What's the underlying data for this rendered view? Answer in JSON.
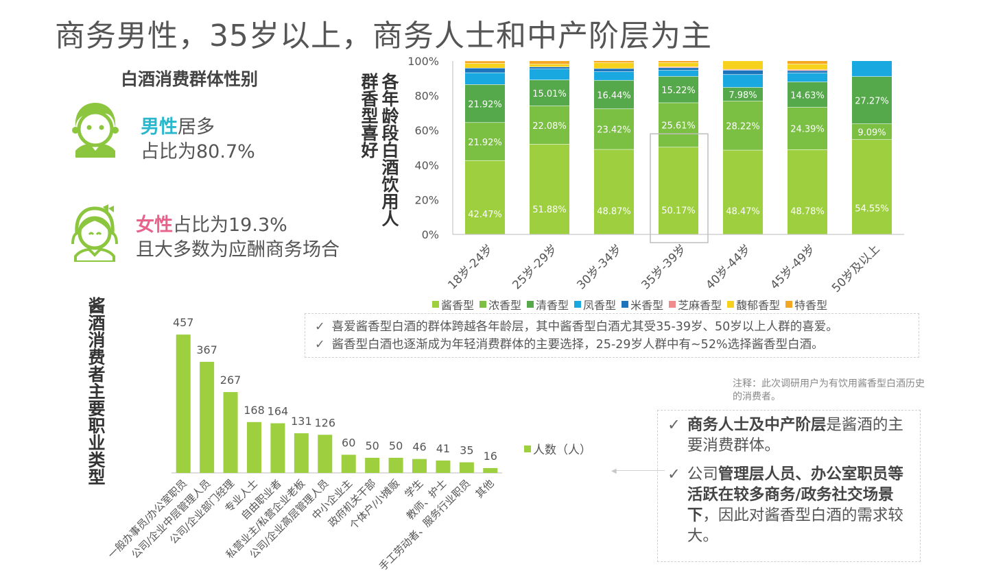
{
  "page": {
    "title": "商务男性，35岁以上，商务人士和中产阶层为主"
  },
  "gender": {
    "title": "白酒消费群体性别",
    "male": {
      "highlight": "男性",
      "rest": "居多",
      "line2": "占比为80.7%"
    },
    "female": {
      "highlight": "女性",
      "rest": "占比为19.3%",
      "line2": "且大多数为应酬商务场合"
    }
  },
  "colors": {
    "jiang": "#9dcf3f",
    "nong": "#7bc043",
    "qing": "#56a94a",
    "feng": "#19a9e0",
    "mi": "#1c75bc",
    "zhima": "#ef8b8b",
    "fuyu": "#f7d21c",
    "te": "#f5a623"
  },
  "chart_titles": {
    "age_chart": "各年龄段白酒饮用人群香型喜好",
    "occupation_chart": "酱酒消费者主要职业类型"
  },
  "chart_data": [
    {
      "type": "bar",
      "stacked": true,
      "categories": [
        "18岁-24岁",
        "25岁-29岁",
        "30岁-34岁",
        "35岁-39岁",
        "40岁-44岁",
        "45岁-49岁",
        "50岁及以上"
      ],
      "ylim": [
        0,
        100
      ],
      "yticks": [
        "0%",
        "20%",
        "40%",
        "60%",
        "80%",
        "100%"
      ],
      "series": [
        {
          "name": "酱香型",
          "color": "#9dcf3f",
          "values": [
            42.47,
            51.88,
            48.87,
            50.17,
            48.47,
            48.78,
            54.55
          ],
          "labels": [
            "42.47%",
            "51.88%",
            "48.87%",
            "50.17%",
            "48.47%",
            "48.78%",
            "54.55%"
          ]
        },
        {
          "name": "浓香型",
          "color": "#7bc043",
          "values": [
            21.92,
            22.08,
            23.42,
            25.61,
            28.22,
            24.39,
            9.09
          ],
          "labels": [
            "21.92%",
            "22.08%",
            "23.42%",
            "25.61%",
            "28.22%",
            "24.39%",
            "9.09%"
          ]
        },
        {
          "name": "清香型",
          "color": "#56a94a",
          "values": [
            21.92,
            15.01,
            16.44,
            15.22,
            7.98,
            14.63,
            27.27
          ],
          "labels": [
            "21.92%",
            "15.01%",
            "16.44%",
            "15.22%",
            "7.98%",
            "14.63%",
            "27.27%"
          ]
        },
        {
          "name": "凤香型",
          "color": "#19a9e0",
          "values": [
            6.8,
            6.3,
            5.0,
            3.5,
            7.4,
            5.2,
            9.09
          ]
        },
        {
          "name": "米香型",
          "color": "#1c75bc",
          "values": [
            2.7,
            1.2,
            1.8,
            1.5,
            2.5,
            1.3,
            0
          ]
        },
        {
          "name": "芝麻香型",
          "color": "#ef8b8b",
          "values": [
            0,
            0,
            0,
            0.5,
            0.5,
            0.6,
            0
          ]
        },
        {
          "name": "馥郁香型",
          "color": "#f7d21c",
          "values": [
            2.7,
            1.6,
            3.4,
            2.4,
            4.9,
            3.3,
            0
          ]
        },
        {
          "name": "特香型",
          "color": "#f5a623",
          "values": [
            1.4,
            1.9,
            1.1,
            1.1,
            0,
            1.8,
            0
          ]
        }
      ],
      "highlighted_category": "35岁-39岁"
    },
    {
      "type": "bar",
      "categories": [
        "一般办事员/办公室职员",
        "公司/企业中层管理人员",
        "公司/企业部门经理",
        "专业人士",
        "自由职业者",
        "私营业主/私营企业老板",
        "公司/企业高层管理人员",
        "中小企业主",
        "政府机关干部",
        "个体户/小摊贩",
        "学生",
        "教师、护士",
        "手工劳动者、服务行业职员",
        "其他"
      ],
      "values": [
        457,
        367,
        267,
        168,
        164,
        131,
        126,
        60,
        50,
        50,
        46,
        41,
        35,
        16
      ],
      "series_name": "人数（人）",
      "color": "#9dcf3f",
      "ylim": [
        0,
        480
      ]
    }
  ],
  "notes": {
    "age_note": [
      "喜爱酱香型白酒的群体跨越各年龄层，其中酱香型白酒尤其受35-39岁、50岁以上人群的喜爱。",
      "酱香型白酒也逐渐成为年轻消费群体的主要选择，25-29岁人群中有~52%选择酱香型白酒。"
    ],
    "footnote": "注释：此次调研用户为有饮用酱香型白酒历史的消费者。",
    "occupation_note": {
      "item1_bold": "商务人士及中产阶层",
      "item1_rest": "是酱酒的主要消费群体。",
      "item2_pre": "公司",
      "item2_bold": "管理层人员、办公室职员等活跃在较多商务/政务社交场景下",
      "item2_rest": "，因此对酱香型白酒的需求较大。"
    },
    "check_mark": "✓"
  }
}
